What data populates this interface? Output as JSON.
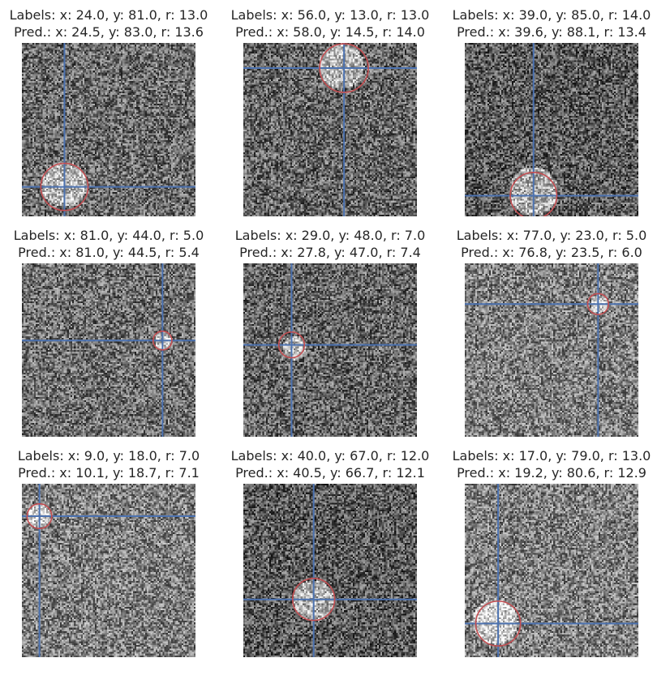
{
  "figure": {
    "grid": "3x3",
    "image_size": 100,
    "label_circle_color": "#c44e52",
    "pred_crosshair_color": "#4c72b0"
  },
  "chart_data": [
    {
      "type": "image",
      "label_line": "Labels: x: 24.0, y: 81.0, r: 13.0",
      "pred_line": " Pred.:  x: 24.5, y: 83.0, r: 13.6",
      "labels": {
        "x": 24.0,
        "y": 81.0,
        "r": 13.0
      },
      "pred": {
        "x": 24.5,
        "y": 83.0,
        "r": 13.6
      },
      "brightness": 0.42,
      "seed": 11
    },
    {
      "type": "image",
      "label_line": "Labels: x: 56.0, y: 13.0, r: 13.0",
      "pred_line": " Pred.:  x: 58.0, y: 14.5, r: 14.0",
      "labels": {
        "x": 56.0,
        "y": 13.0,
        "r": 13.0
      },
      "pred": {
        "x": 58.0,
        "y": 14.5,
        "r": 14.0
      },
      "brightness": 0.4,
      "seed": 23
    },
    {
      "type": "image",
      "label_line": "Labels: x: 39.0, y: 85.0, r: 14.0",
      "pred_line": " Pred.:  x: 39.6, y: 88.1, r: 13.4",
      "labels": {
        "x": 39.0,
        "y": 85.0,
        "r": 14.0
      },
      "pred": {
        "x": 39.6,
        "y": 88.1,
        "r": 13.4
      },
      "brightness": 0.36,
      "seed": 37
    },
    {
      "type": "image",
      "label_line": "Labels: x: 81.0, y: 44.0, r: 5.0",
      "pred_line": " Pred.:  x: 81.0, y: 44.5, r: 5.4",
      "labels": {
        "x": 81.0,
        "y": 44.0,
        "r": 5.0
      },
      "pred": {
        "x": 81.0,
        "y": 44.5,
        "r": 5.4
      },
      "brightness": 0.44,
      "seed": 41
    },
    {
      "type": "image",
      "label_line": "Labels: x: 29.0, y: 48.0, r: 7.0",
      "pred_line": " Pred.:  x: 27.8, y: 47.0, r: 7.4",
      "labels": {
        "x": 29.0,
        "y": 48.0,
        "r": 7.0
      },
      "pred": {
        "x": 27.8,
        "y": 47.0,
        "r": 7.4
      },
      "brightness": 0.4,
      "seed": 53
    },
    {
      "type": "image",
      "label_line": "Labels: x: 77.0, y: 23.0, r: 5.0",
      "pred_line": " Pred.:  x: 76.8, y: 23.5, r: 6.0",
      "labels": {
        "x": 77.0,
        "y": 23.0,
        "r": 5.0
      },
      "pred": {
        "x": 76.8,
        "y": 23.5,
        "r": 6.0
      },
      "brightness": 0.5,
      "seed": 67
    },
    {
      "type": "image",
      "label_line": "Labels: x: 9.0, y: 18.0, r: 7.0",
      "pred_line": "Pred.:  x: 10.1, y: 18.7, r: 7.1",
      "labels": {
        "x": 9.0,
        "y": 18.0,
        "r": 7.0
      },
      "pred": {
        "x": 10.1,
        "y": 18.7,
        "r": 7.1
      },
      "brightness": 0.5,
      "seed": 79
    },
    {
      "type": "image",
      "label_line": "Labels: x: 40.0, y: 67.0, r: 12.0",
      "pred_line": " Pred.:  x: 40.5, y: 66.7, r: 12.1",
      "labels": {
        "x": 40.0,
        "y": 67.0,
        "r": 12.0
      },
      "pred": {
        "x": 40.5,
        "y": 66.7,
        "r": 12.1
      },
      "brightness": 0.36,
      "seed": 83
    },
    {
      "type": "image",
      "label_line": "Labels: x: 17.0, y: 79.0, r: 13.0",
      "pred_line": " Pred.:  x: 19.2, y: 80.6, r: 12.9",
      "labels": {
        "x": 17.0,
        "y": 79.0,
        "r": 13.0
      },
      "pred": {
        "x": 19.2,
        "y": 80.6,
        "r": 12.9
      },
      "brightness": 0.5,
      "seed": 97
    }
  ]
}
